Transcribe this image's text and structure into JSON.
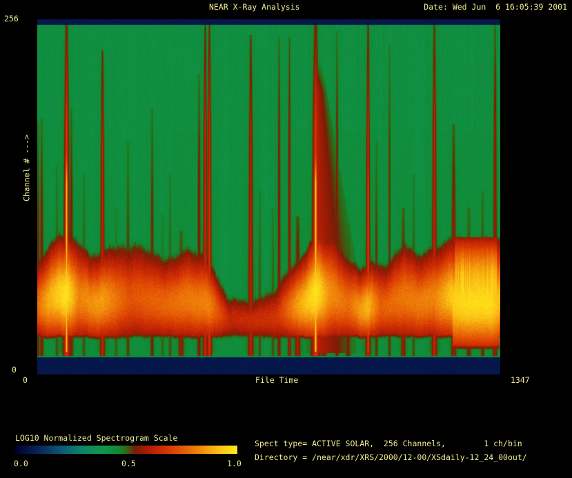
{
  "window": {
    "title": "NEAR X-Ray Analysis",
    "date": "Date: Wed Jun  6 16:05:39 2001"
  },
  "plot": {
    "y_max": "256",
    "y_min": "0",
    "y_label": "Channel # --->",
    "x_min": "0",
    "x_label": "File Time",
    "x_max": "1347"
  },
  "colorbar": {
    "title": "LOG10 Normalized Spectrogram Scale",
    "t0": "0.0",
    "t1": "0.5",
    "t2": "1.0"
  },
  "info": {
    "spect_line": "Spect type= ACTIVE SOLAR,  256 Channels,        1 ch/bin",
    "dir_line": "Directory = /near/xdr/XRS/2000/12-00/XSdaily-12_24_00out/"
  },
  "colors": {
    "background": "#000000",
    "text": "#f0ec96",
    "navy_band": "#081c50"
  },
  "chart_data": {
    "type": "heatmap",
    "title": "NEAR X-Ray Analysis",
    "xlabel": "File Time",
    "x_range": [
      0,
      1347
    ],
    "ylabel": "Channel #",
    "y_range": [
      0,
      256
    ],
    "scale": {
      "label": "LOG10 Normalized Spectrogram Scale",
      "ticks": [
        0.0,
        0.5,
        1.0
      ]
    },
    "background_value": 0.44,
    "navy_value": 0.07,
    "palette_stops": [
      [
        0.0,
        "#010124"
      ],
      [
        0.06,
        "#051448"
      ],
      [
        0.13,
        "#0a2f62"
      ],
      [
        0.22,
        "#0c5f78"
      ],
      [
        0.3,
        "#0e8468"
      ],
      [
        0.38,
        "#10954e"
      ],
      [
        0.46,
        "#108c38"
      ],
      [
        0.5,
        "#2e6a14"
      ],
      [
        0.54,
        "#7a1c06"
      ],
      [
        0.6,
        "#b01c04"
      ],
      [
        0.68,
        "#d43404"
      ],
      [
        0.76,
        "#e65d05"
      ],
      [
        0.84,
        "#f28c0c"
      ],
      [
        0.92,
        "#fbc315"
      ],
      [
        1.0,
        "#ffe91c"
      ]
    ],
    "band": {
      "comment_fields": "top_profile: [file_time, channel_of_band_top_edge]; core_profile: [file_time, yellow_core_strength_0_1]",
      "top_profile": [
        [
          0,
          72
        ],
        [
          42,
          90
        ],
        [
          92,
          95
        ],
        [
          153,
          79
        ],
        [
          223,
          87
        ],
        [
          313,
          84
        ],
        [
          373,
          74
        ],
        [
          434,
          84
        ],
        [
          494,
          79
        ],
        [
          554,
          46
        ],
        [
          614,
          44
        ],
        [
          675,
          51
        ],
        [
          735,
          69
        ],
        [
          775,
          79
        ],
        [
          811,
          100
        ],
        [
          855,
          95
        ],
        [
          895,
          79
        ],
        [
          935,
          69
        ],
        [
          976,
          74
        ],
        [
          1016,
          69
        ],
        [
          1066,
          87
        ],
        [
          1116,
          79
        ],
        [
          1176,
          87
        ],
        [
          1217,
          92
        ],
        [
          1277,
          90
        ],
        [
          1347,
          90
        ]
      ],
      "core_profile": [
        [
          0,
          0.5
        ],
        [
          30,
          0.75
        ],
        [
          84,
          1.0
        ],
        [
          120,
          0.6
        ],
        [
          190,
          0.7
        ],
        [
          265,
          0.4
        ],
        [
          390,
          0.5
        ],
        [
          420,
          0.55
        ],
        [
          500,
          0.6
        ],
        [
          560,
          0.15
        ],
        [
          650,
          0.2
        ],
        [
          700,
          0.25
        ],
        [
          757,
          0.7
        ],
        [
          811,
          1.0
        ],
        [
          850,
          0.65
        ],
        [
          905,
          0.5
        ],
        [
          962,
          0.8
        ],
        [
          1000,
          0.45
        ],
        [
          1066,
          0.55
        ],
        [
          1156,
          0.6
        ],
        [
          1213,
          0.9
        ],
        [
          1260,
          0.95
        ],
        [
          1320,
          0.95
        ],
        [
          1347,
          0.8
        ]
      ]
    },
    "streak_fields": [
      "file_time",
      "top_channel",
      "intensity",
      "width_px",
      "yellow_core",
      "comet_tail"
    ],
    "streaks": [
      [
        3,
        180,
        0.45,
        1.2,
        0,
        0
      ],
      [
        12,
        184,
        0.5,
        1.4,
        0,
        0
      ],
      [
        56,
        148,
        0.35,
        1.3,
        0,
        0
      ],
      [
        84,
        256,
        1.0,
        2.2,
        1.0,
        0
      ],
      [
        98,
        192,
        0.5,
        1.4,
        0,
        0
      ],
      [
        134,
        141,
        0.35,
        1.3,
        0,
        0
      ],
      [
        189,
        236,
        0.8,
        1.6,
        0,
        0
      ],
      [
        229,
        115,
        0.3,
        1.3,
        0,
        0
      ],
      [
        263,
        166,
        0.4,
        1.3,
        0,
        0
      ],
      [
        333,
        192,
        0.45,
        1.4,
        0,
        0
      ],
      [
        363,
        110,
        0.3,
        1.2,
        0,
        0
      ],
      [
        387,
        141,
        0.35,
        1.2,
        0,
        0
      ],
      [
        418,
        97,
        0.6,
        1.8,
        0,
        0
      ],
      [
        470,
        218,
        0.5,
        1.4,
        0,
        0
      ],
      [
        488,
        256,
        0.85,
        1.6,
        0,
        0
      ],
      [
        500,
        256,
        0.9,
        1.6,
        0.5,
        0
      ],
      [
        622,
        248,
        0.75,
        1.8,
        0,
        0
      ],
      [
        648,
        128,
        0.35,
        1.2,
        0,
        0
      ],
      [
        685,
        115,
        0.35,
        1.2,
        0,
        0
      ],
      [
        703,
        246,
        0.55,
        1.2,
        0,
        0
      ],
      [
        733,
        246,
        0.6,
        1.2,
        0,
        0
      ],
      [
        757,
        108,
        0.7,
        1.8,
        0.8,
        0
      ],
      [
        811,
        256,
        1.0,
        2.8,
        1.0,
        1
      ],
      [
        835,
        179,
        0.6,
        1.8,
        0,
        0
      ],
      [
        873,
        251,
        0.5,
        1.3,
        0,
        0
      ],
      [
        905,
        102,
        0.5,
        1.8,
        0,
        0
      ],
      [
        962,
        256,
        0.85,
        1.6,
        0.6,
        0
      ],
      [
        988,
        166,
        0.4,
        1.3,
        0,
        0
      ],
      [
        1026,
        241,
        0.4,
        1.2,
        0,
        0
      ],
      [
        1066,
        115,
        0.6,
        1.6,
        0,
        0
      ],
      [
        1096,
        141,
        0.35,
        1.2,
        0,
        0
      ],
      [
        1156,
        256,
        0.8,
        1.8,
        0,
        0
      ],
      [
        1213,
        179,
        0.6,
        1.8,
        0,
        0
      ],
      [
        1257,
        115,
        0.5,
        1.8,
        0,
        0
      ],
      [
        1297,
        128,
        0.45,
        1.4,
        0,
        0
      ],
      [
        1333,
        256,
        0.6,
        1.6,
        0,
        0
      ]
    ],
    "block_fields": [
      "x0_time",
      "x1_time",
      "top_channel",
      "bottom_channel",
      "boost"
    ],
    "blocks": [
      [
        1210,
        1345,
        92,
        8,
        0.38
      ]
    ]
  }
}
